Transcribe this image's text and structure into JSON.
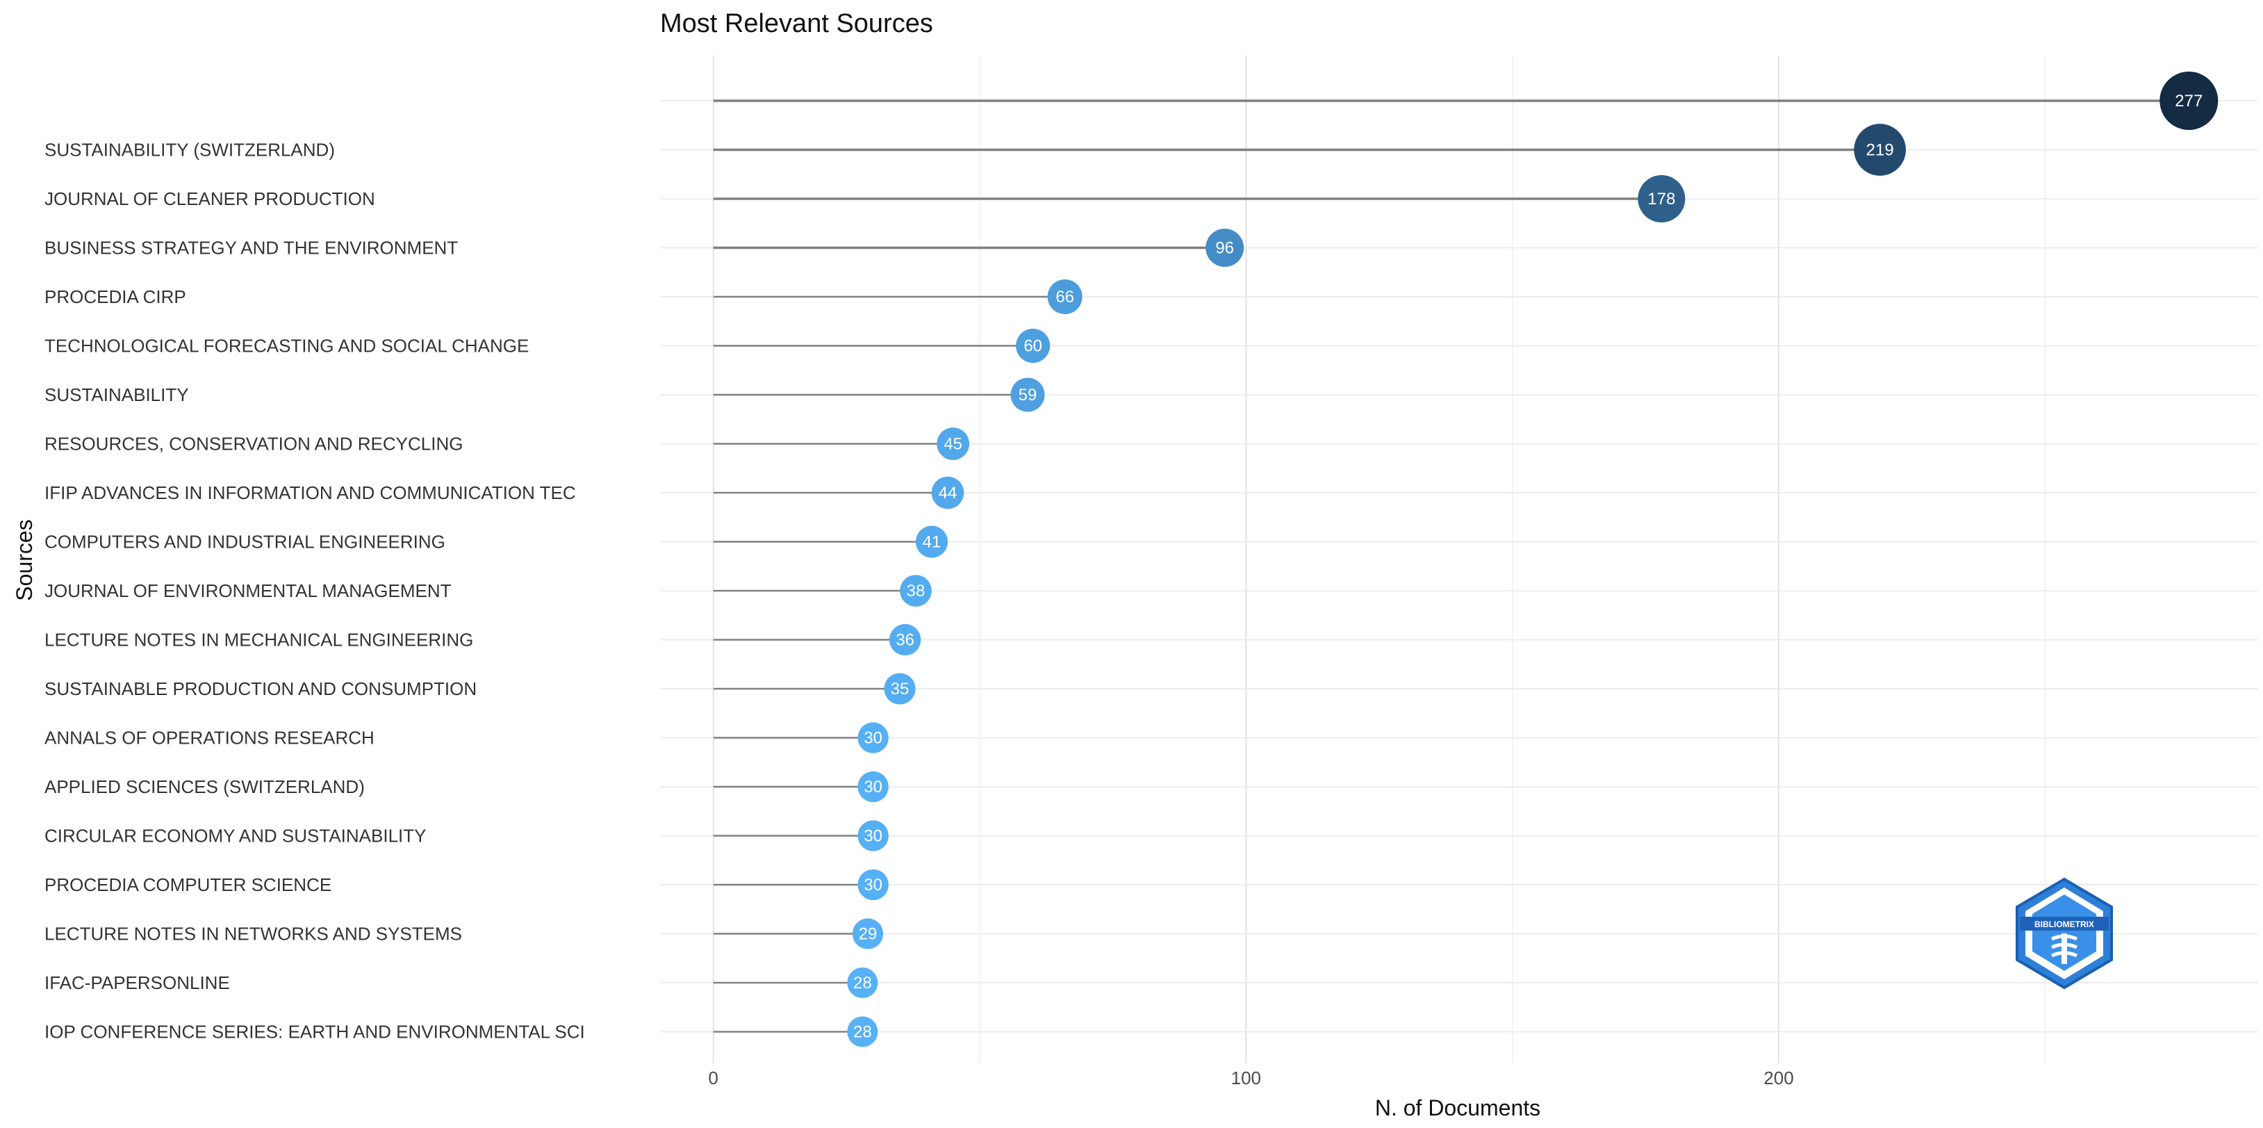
{
  "chart_data": {
    "type": "lollipop",
    "title": "Most Relevant Sources",
    "xlabel": "N. of Documents",
    "ylabel": "Sources",
    "xlim": [
      -10,
      290
    ],
    "x_ticks": [
      0,
      100,
      200
    ],
    "grid": true,
    "color_scale": [
      "#56B1F7",
      "#132B43"
    ],
    "categories": [
      "",
      "SUSTAINABILITY (SWITZERLAND)",
      "JOURNAL OF CLEANER PRODUCTION",
      "BUSINESS STRATEGY AND THE ENVIRONMENT",
      "PROCEDIA CIRP",
      "TECHNOLOGICAL FORECASTING AND SOCIAL CHANGE",
      "SUSTAINABILITY",
      "RESOURCES, CONSERVATION AND RECYCLING",
      "IFIP ADVANCES IN INFORMATION AND COMMUNICATION TEC",
      "COMPUTERS AND INDUSTRIAL ENGINEERING",
      "JOURNAL OF ENVIRONMENTAL MANAGEMENT",
      "LECTURE NOTES IN MECHANICAL ENGINEERING",
      "SUSTAINABLE PRODUCTION AND CONSUMPTION",
      "ANNALS OF OPERATIONS RESEARCH",
      "APPLIED SCIENCES (SWITZERLAND)",
      "CIRCULAR ECONOMY AND SUSTAINABILITY",
      "PROCEDIA COMPUTER SCIENCE",
      "LECTURE NOTES IN NETWORKS AND SYSTEMS",
      "IFAC-PAPERSONLINE",
      "IOP CONFERENCE SERIES: EARTH AND ENVIRONMENTAL SCI"
    ],
    "values": [
      277,
      219,
      178,
      96,
      66,
      60,
      59,
      45,
      44,
      41,
      38,
      36,
      35,
      30,
      30,
      30,
      30,
      29,
      28,
      28
    ]
  },
  "logo": {
    "icon": "bibliometrix-logo-icon",
    "text": "BIBLIOMETRIX"
  }
}
